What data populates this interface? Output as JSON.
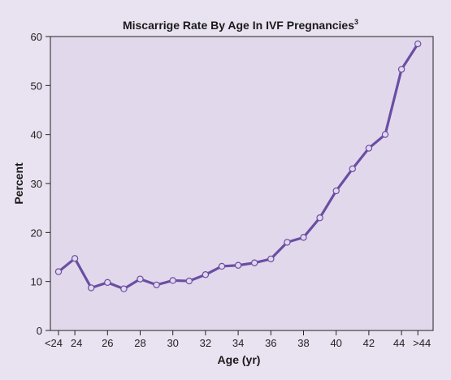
{
  "chart_data": {
    "type": "line",
    "title": "Miscarrige Rate By Age In IVF Pregnancies",
    "title_superscript": "3",
    "xlabel": "Age (yr)",
    "ylabel": "Percent",
    "x_tick_labels": [
      "<24",
      "24",
      "26",
      "28",
      "30",
      "32",
      "34",
      "36",
      "38",
      "40",
      "42",
      "44",
      ">44"
    ],
    "y_ticks": [
      0,
      10,
      20,
      30,
      40,
      50,
      60
    ],
    "ylim": [
      0,
      60
    ],
    "grid": false,
    "colors": {
      "background": "#e9e3f1",
      "plot_area": "#e2d8ec",
      "line": "#6a4ea3",
      "axis": "#222222"
    },
    "series": [
      {
        "x": [
          "<24",
          "24",
          "25",
          "26",
          "27",
          "28",
          "29",
          "30",
          "31",
          "32",
          "33",
          "34",
          "35",
          "36",
          "37",
          "38",
          "39",
          "40",
          "41",
          "42",
          "43",
          "44",
          ">44"
        ],
        "values": [
          12.0,
          14.7,
          8.7,
          9.8,
          8.5,
          10.5,
          9.3,
          10.2,
          10.1,
          11.4,
          13.1,
          13.3,
          13.8,
          14.6,
          18.0,
          19.0,
          23.0,
          28.5,
          33.0,
          37.2,
          40.0,
          53.3,
          58.5
        ]
      }
    ]
  }
}
